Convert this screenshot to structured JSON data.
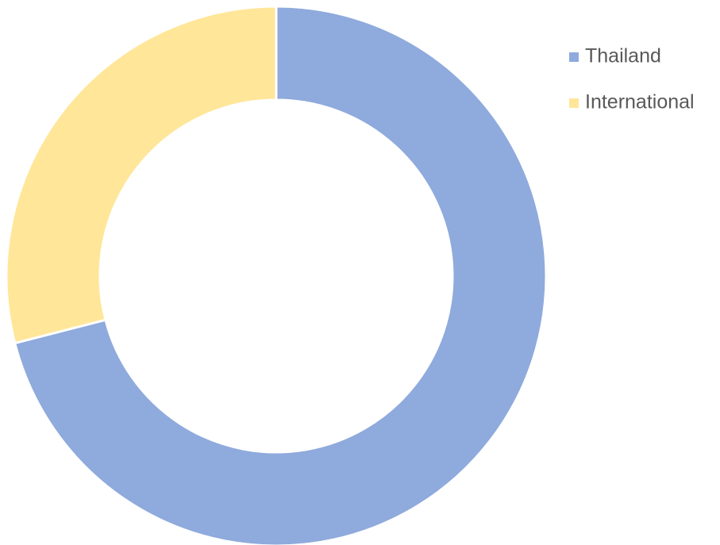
{
  "chart_data": {
    "type": "donut",
    "categories": [
      "Thailand",
      "International"
    ],
    "values": [
      71,
      29
    ],
    "colors": [
      "#8faadc",
      "#ffe699"
    ],
    "legend": "right"
  }
}
